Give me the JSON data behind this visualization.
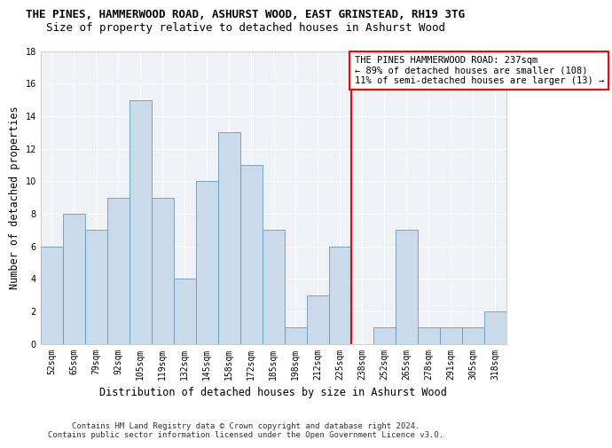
{
  "title_line1": "THE PINES, HAMMERWOOD ROAD, ASHURST WOOD, EAST GRINSTEAD, RH19 3TG",
  "title_line2": "Size of property relative to detached houses in Ashurst Wood",
  "xlabel": "Distribution of detached houses by size in Ashurst Wood",
  "ylabel": "Number of detached properties",
  "footer_line1": "Contains HM Land Registry data © Crown copyright and database right 2024.",
  "footer_line2": "Contains public sector information licensed under the Open Government Licence v3.0.",
  "bins": [
    "52sqm",
    "65sqm",
    "79sqm",
    "92sqm",
    "105sqm",
    "119sqm",
    "132sqm",
    "145sqm",
    "158sqm",
    "172sqm",
    "185sqm",
    "198sqm",
    "212sqm",
    "225sqm",
    "238sqm",
    "252sqm",
    "265sqm",
    "278sqm",
    "291sqm",
    "305sqm",
    "318sqm"
  ],
  "values": [
    6,
    8,
    7,
    9,
    15,
    9,
    4,
    10,
    13,
    11,
    7,
    1,
    3,
    6,
    0,
    1,
    7,
    1,
    1,
    1,
    2
  ],
  "bar_color": "#c9daea",
  "bar_edge_color": "#6699bb",
  "highlight_bin_index": 14,
  "annotation_text": "THE PINES HAMMERWOOD ROAD: 237sqm\n← 89% of detached houses are smaller (108)\n11% of semi-detached houses are larger (13) →",
  "ylim": [
    0,
    18
  ],
  "yticks": [
    0,
    2,
    4,
    6,
    8,
    10,
    12,
    14,
    16,
    18
  ],
  "bg_color": "#eef2f7",
  "grid_color": "#ffffff",
  "title_fontsize": 9,
  "subtitle_fontsize": 9,
  "axis_label_fontsize": 8.5,
  "tick_fontsize": 7,
  "annotation_fontsize": 7.5,
  "footer_fontsize": 6.5
}
